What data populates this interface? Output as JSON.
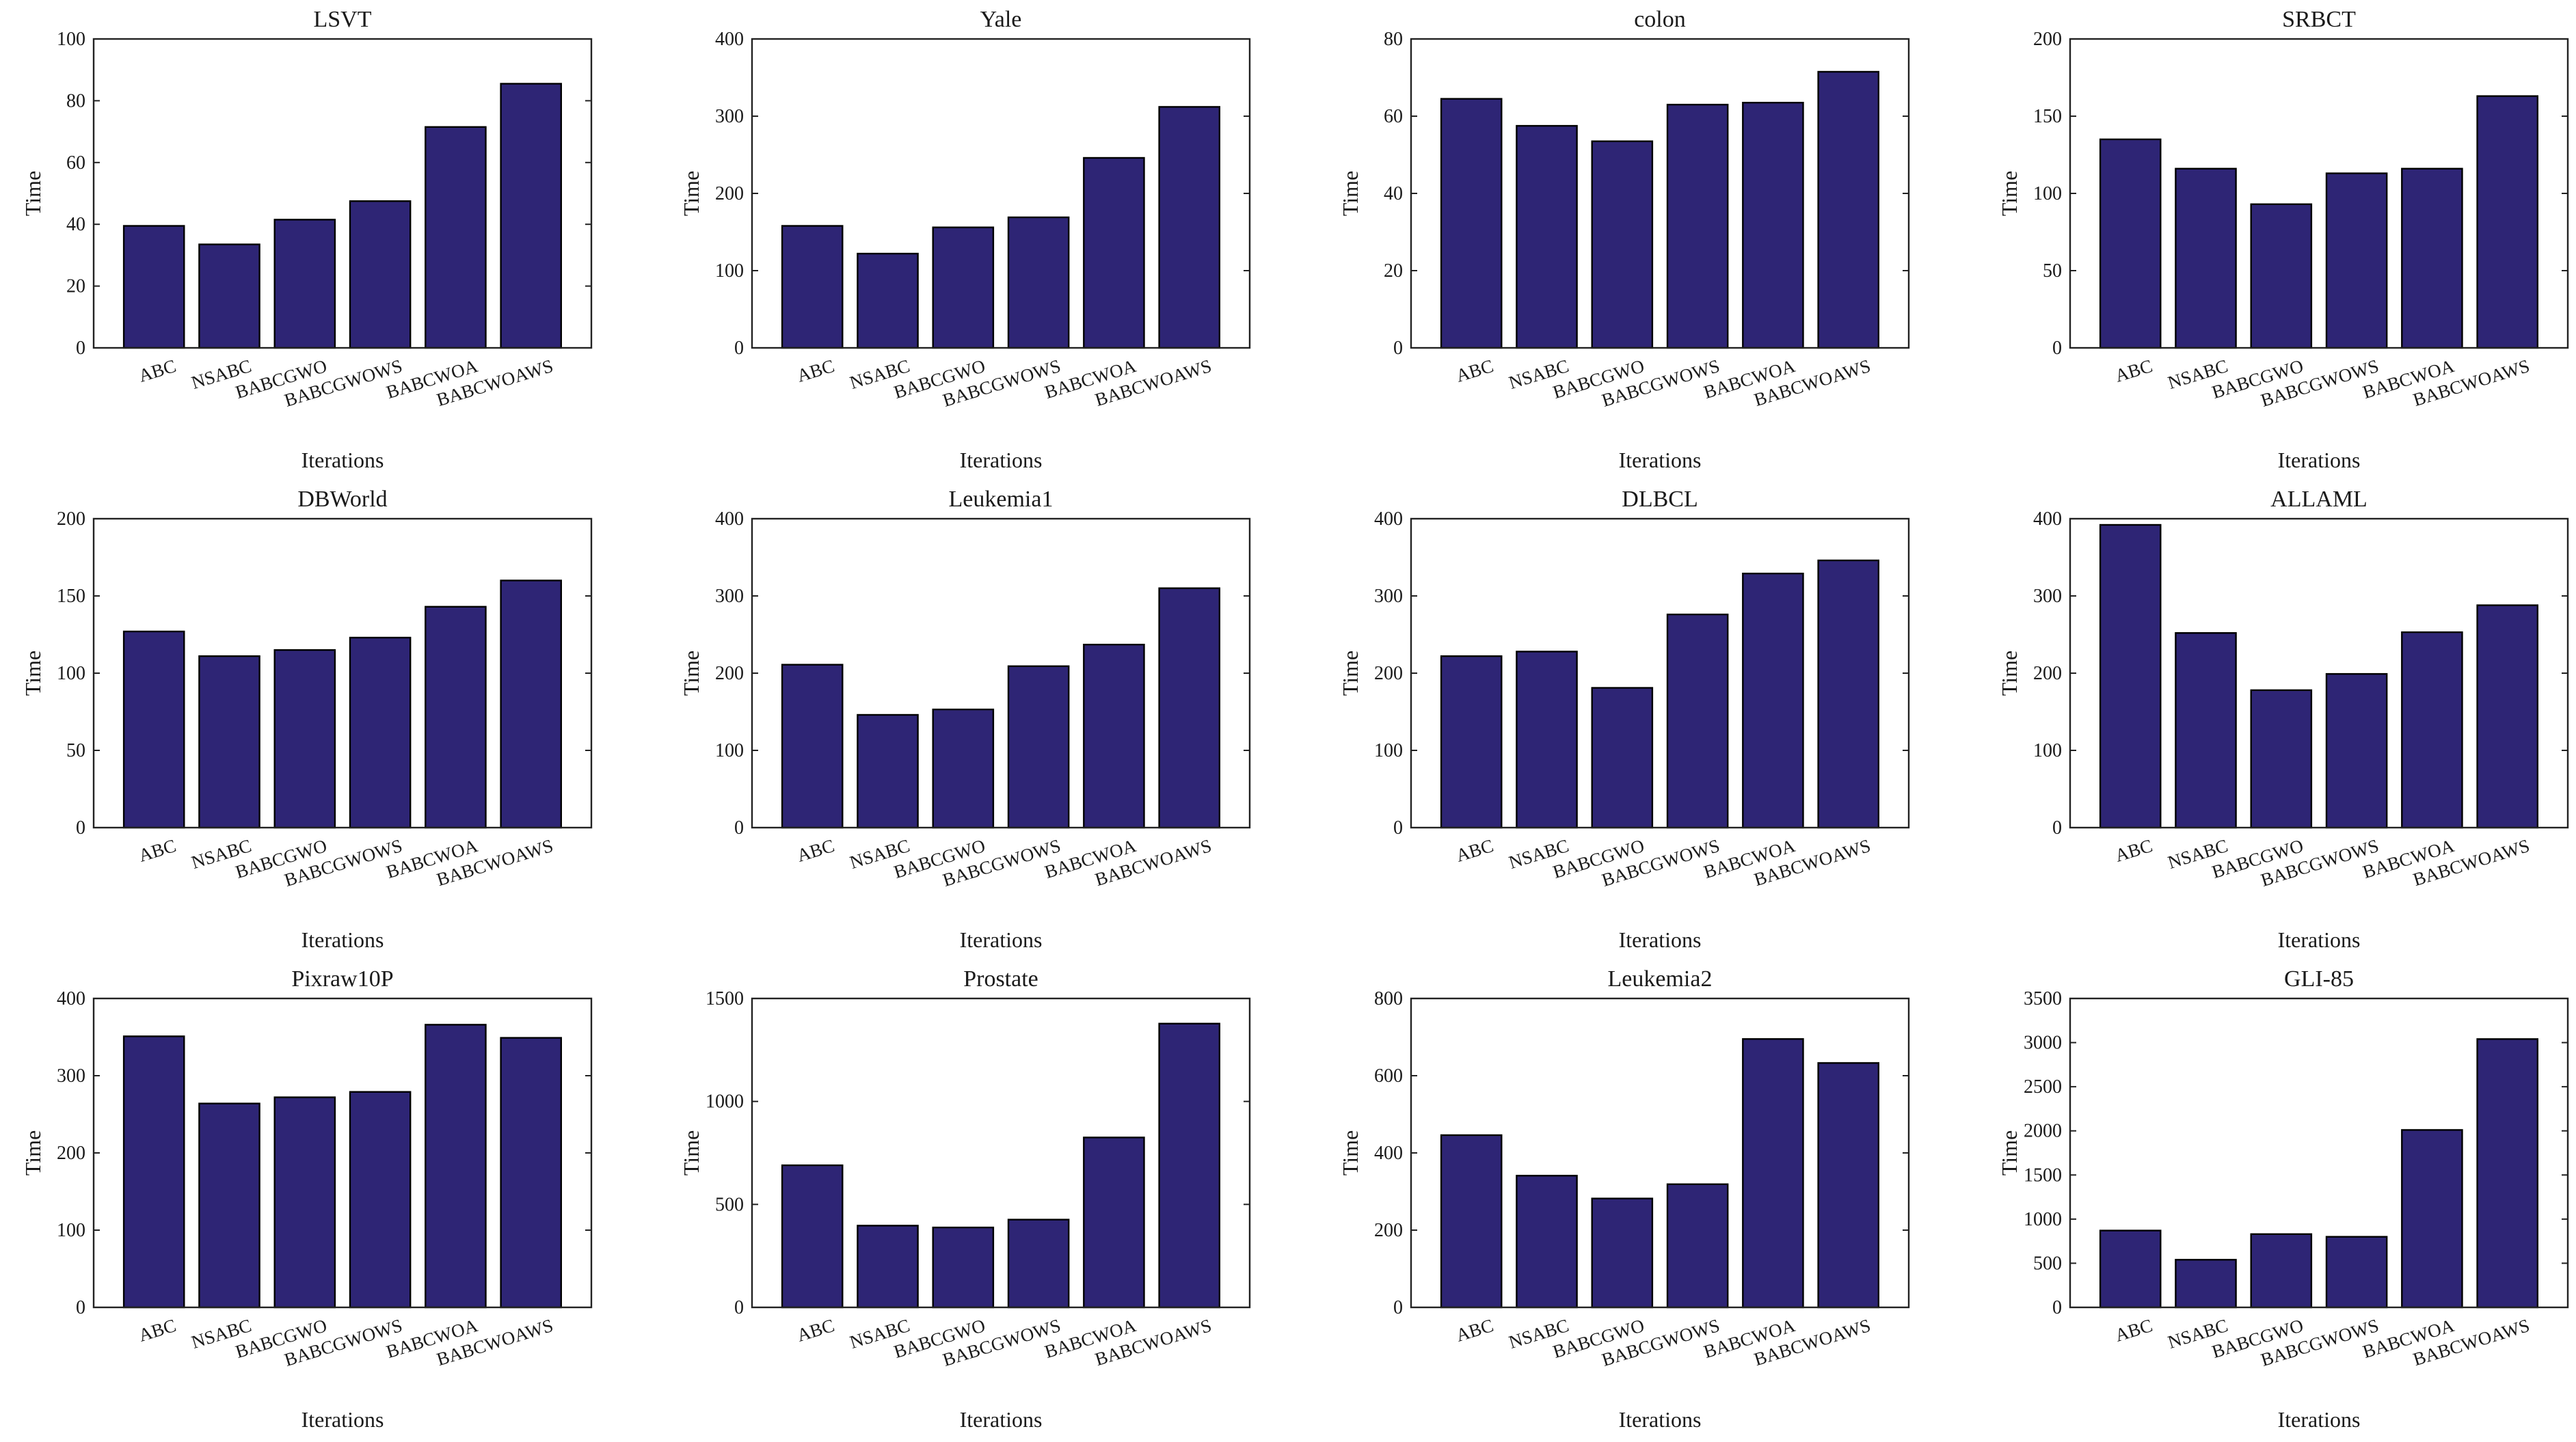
{
  "chart_data": [
    {
      "type": "bar",
      "title": "LSVT",
      "xlabel": "Iterations",
      "ylabel": "Time",
      "ylim": [
        0,
        100
      ],
      "yticks": [
        0,
        20,
        40,
        60,
        80,
        100
      ],
      "categories": [
        "ABC",
        "NSABC",
        "BABCGWO",
        "BABCGWOWS",
        "BABCWOA",
        "BABCWOAWS"
      ],
      "values": [
        39.5,
        33.5,
        41.5,
        47.5,
        71.5,
        85.5
      ],
      "bar_color": "#2e2575"
    },
    {
      "type": "bar",
      "title": "Yale",
      "xlabel": "Iterations",
      "ylabel": "Time",
      "ylim": [
        0,
        400
      ],
      "yticks": [
        0,
        100,
        200,
        300,
        400
      ],
      "categories": [
        "ABC",
        "NSABC",
        "BABCGWO",
        "BABCGWOWS",
        "BABCWOA",
        "BABCWOAWS"
      ],
      "values": [
        158,
        122,
        156,
        169,
        246,
        312
      ],
      "bar_color": "#2e2575"
    },
    {
      "type": "bar",
      "title": "colon",
      "xlabel": "Iterations",
      "ylabel": "Time",
      "ylim": [
        0,
        80
      ],
      "yticks": [
        0,
        20,
        40,
        60,
        80
      ],
      "categories": [
        "ABC",
        "NSABC",
        "BABCGWO",
        "BABCGWOWS",
        "BABCWOA",
        "BABCWOAWS"
      ],
      "values": [
        64.5,
        57.5,
        53.5,
        63,
        63.5,
        71.5
      ],
      "bar_color": "#2e2575"
    },
    {
      "type": "bar",
      "title": "SRBCT",
      "xlabel": "Iterations",
      "ylabel": "Time",
      "ylim": [
        0,
        200
      ],
      "yticks": [
        0,
        50,
        100,
        150,
        200
      ],
      "categories": [
        "ABC",
        "NSABC",
        "BABCGWO",
        "BABCGWOWS",
        "BABCWOA",
        "BABCWOAWS"
      ],
      "values": [
        135,
        116,
        93,
        113,
        116,
        163
      ],
      "bar_color": "#2e2575"
    },
    {
      "type": "bar",
      "title": "DBWorld",
      "xlabel": "Iterations",
      "ylabel": "Time",
      "ylim": [
        0,
        200
      ],
      "yticks": [
        0,
        50,
        100,
        150,
        200
      ],
      "categories": [
        "ABC",
        "NSABC",
        "BABCGWO",
        "BABCGWOWS",
        "BABCWOA",
        "BABCWOAWS"
      ],
      "values": [
        127,
        111,
        115,
        123,
        143,
        160
      ],
      "bar_color": "#2e2575"
    },
    {
      "type": "bar",
      "title": "Leukemia1",
      "xlabel": "Iterations",
      "ylabel": "Time",
      "ylim": [
        0,
        400
      ],
      "yticks": [
        0,
        100,
        200,
        300,
        400
      ],
      "categories": [
        "ABC",
        "NSABC",
        "BABCGWO",
        "BABCGWOWS",
        "BABCWOA",
        "BABCWOAWS"
      ],
      "values": [
        211,
        146,
        153,
        209,
        237,
        310
      ],
      "bar_color": "#2e2575"
    },
    {
      "type": "bar",
      "title": "DLBCL",
      "xlabel": "Iterations",
      "ylabel": "Time",
      "ylim": [
        0,
        400
      ],
      "yticks": [
        0,
        100,
        200,
        300,
        400
      ],
      "categories": [
        "ABC",
        "NSABC",
        "BABCGWO",
        "BABCGWOWS",
        "BABCWOA",
        "BABCWOAWS"
      ],
      "values": [
        222,
        228,
        181,
        276,
        329,
        346
      ],
      "bar_color": "#2e2575"
    },
    {
      "type": "bar",
      "title": "ALLAML",
      "xlabel": "Iterations",
      "ylabel": "Time",
      "ylim": [
        0,
        400
      ],
      "yticks": [
        0,
        100,
        200,
        300,
        400
      ],
      "categories": [
        "ABC",
        "NSABC",
        "BABCGWO",
        "BABCGWOWS",
        "BABCWOA",
        "BABCWOAWS"
      ],
      "values": [
        392,
        252,
        178,
        199,
        253,
        288
      ],
      "bar_color": "#2e2575"
    },
    {
      "type": "bar",
      "title": "Pixraw10P",
      "xlabel": "Iterations",
      "ylabel": "Time",
      "ylim": [
        0,
        400
      ],
      "yticks": [
        0,
        100,
        200,
        300,
        400
      ],
      "categories": [
        "ABC",
        "NSABC",
        "BABCGWO",
        "BABCGWOWS",
        "BABCWOA",
        "BABCWOAWS"
      ],
      "values": [
        351,
        264,
        272,
        279,
        366,
        349
      ],
      "bar_color": "#2e2575"
    },
    {
      "type": "bar",
      "title": "Prostate",
      "xlabel": "Iterations",
      "ylabel": "Time",
      "ylim": [
        0,
        1500
      ],
      "yticks": [
        0,
        500,
        1000,
        1500
      ],
      "categories": [
        "ABC",
        "NSABC",
        "BABCGWO",
        "BABCGWOWS",
        "BABCWOA",
        "BABCWOAWS"
      ],
      "values": [
        690,
        397,
        388,
        426,
        825,
        1378
      ],
      "bar_color": "#2e2575"
    },
    {
      "type": "bar",
      "title": "Leukemia2",
      "xlabel": "Iterations",
      "ylabel": "Time",
      "ylim": [
        0,
        800
      ],
      "yticks": [
        0,
        200,
        400,
        600,
        800
      ],
      "categories": [
        "ABC",
        "NSABC",
        "BABCGWO",
        "BABCGWOWS",
        "BABCWOA",
        "BABCWOAWS"
      ],
      "values": [
        446,
        341,
        282,
        319,
        695,
        633
      ],
      "bar_color": "#2e2575"
    },
    {
      "type": "bar",
      "title": "GLI-85",
      "xlabel": "Iterations",
      "ylabel": "Time",
      "ylim": [
        0,
        3500
      ],
      "yticks": [
        0,
        500,
        1000,
        1500,
        2000,
        2500,
        3000,
        3500
      ],
      "categories": [
        "ABC",
        "NSABC",
        "BABCGWO",
        "BABCGWOWS",
        "BABCWOA",
        "BABCWOAWS"
      ],
      "values": [
        870,
        540,
        830,
        800,
        2010,
        3040
      ],
      "bar_color": "#2e2575"
    }
  ]
}
